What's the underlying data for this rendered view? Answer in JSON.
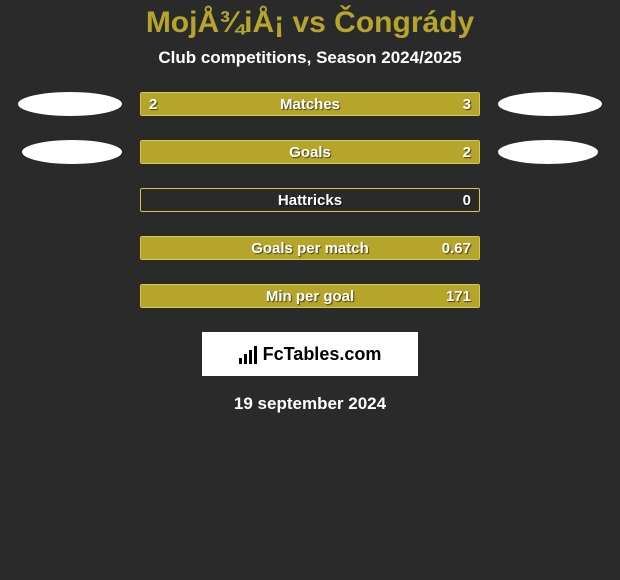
{
  "title": "MojÅ¾iÅ¡ vs Čongrády",
  "subtitle": "Club competitions, Season 2024/2025",
  "date_text": "19 september 2024",
  "logo_text": "FcTables.com",
  "colors": {
    "background": "#2a2a2a",
    "accent": "#b5a52a",
    "border": "#d5c94a",
    "white": "#ffffff"
  },
  "ellipses": [
    {
      "left_w": 104,
      "left_h": 24,
      "right_w": 104,
      "right_h": 24
    },
    {
      "left_w": 100,
      "left_h": 24,
      "right_w": 100,
      "right_h": 24
    }
  ],
  "stats": [
    {
      "label": "Matches",
      "left_value": "2",
      "right_value": "3",
      "left_pct": 40,
      "right_pct": 60,
      "show_ellipse": true,
      "ellipse_index": 0
    },
    {
      "label": "Goals",
      "left_value": "",
      "right_value": "2",
      "left_pct": 0,
      "right_pct": 100,
      "show_ellipse": true,
      "ellipse_index": 1
    },
    {
      "label": "Hattricks",
      "left_value": "",
      "right_value": "0",
      "left_pct": 0,
      "right_pct": 0,
      "show_ellipse": false
    },
    {
      "label": "Goals per match",
      "left_value": "",
      "right_value": "0.67",
      "left_pct": 0,
      "right_pct": 100,
      "show_ellipse": false
    },
    {
      "label": "Min per goal",
      "left_value": "",
      "right_value": "171",
      "left_pct": 0,
      "right_pct": 100,
      "show_ellipse": false
    }
  ]
}
